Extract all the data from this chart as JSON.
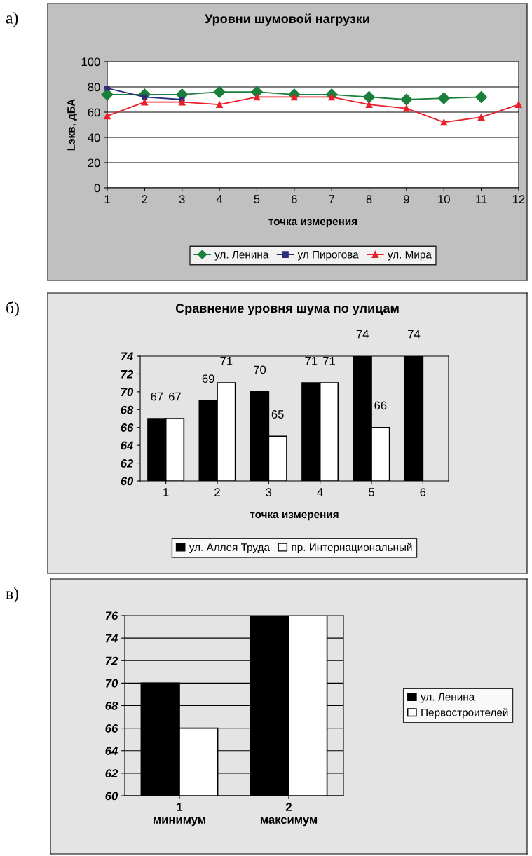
{
  "chart_data": [
    {
      "type": "line",
      "title": "Уровни шумовой нагрузки",
      "xlabel": "точка измерения",
      "ylabel": "Lэкв, дБА",
      "annotations": [
        "а)"
      ],
      "x": [
        1,
        2,
        3,
        4,
        5,
        6,
        7,
        8,
        9,
        10,
        11,
        12
      ],
      "xlim": [
        1,
        12
      ],
      "xticks": [
        1,
        2,
        3,
        4,
        5,
        6,
        7,
        8,
        9,
        10,
        11,
        12
      ],
      "ylim": [
        0,
        100
      ],
      "yticks": [
        0,
        20,
        40,
        60,
        80,
        100
      ],
      "grid": "y",
      "legend": "bottom",
      "series": [
        {
          "name": "ул. Ленина",
          "color": "#1a7f3a",
          "marker": "diamond",
          "values": [
            74,
            74,
            74,
            76,
            76,
            74,
            74,
            72,
            70,
            71,
            72,
            null
          ]
        },
        {
          "name": "ул Пирогова",
          "color": "#2b2f7a",
          "marker": "square",
          "values": [
            79,
            72,
            70,
            null,
            null,
            null,
            null,
            null,
            null,
            null,
            null,
            null
          ]
        },
        {
          "name": "ул. Мира",
          "color": "#e8202a",
          "marker": "triangle",
          "values": [
            57,
            68,
            68,
            66,
            72,
            72,
            72,
            66,
            63,
            52,
            56,
            66
          ]
        }
      ]
    },
    {
      "type": "bar",
      "title": "Сравнение уровня шума по улицам",
      "xlabel": "точка измерения",
      "annotations": [
        "б)"
      ],
      "categories": [
        "1",
        "2",
        "3",
        "4",
        "5",
        "6"
      ],
      "ylim": [
        60,
        74
      ],
      "yticks": [
        60,
        62,
        64,
        66,
        68,
        70,
        72,
        74
      ],
      "data_labels": true,
      "legend": "bottom",
      "series": [
        {
          "name": "ул. Аллея Труда",
          "color": "#000000",
          "values": [
            67,
            69,
            70,
            71,
            74,
            74
          ]
        },
        {
          "name": "пр. Интернациональный",
          "color": "#ffffff",
          "values": [
            67,
            71,
            65,
            71,
            66,
            null
          ]
        }
      ]
    },
    {
      "type": "bar",
      "annotations": [
        "в)"
      ],
      "categories": [
        "1\nминимум",
        "2\nмаксимум"
      ],
      "ylim": [
        60,
        76
      ],
      "yticks": [
        60,
        62,
        64,
        66,
        68,
        70,
        72,
        74,
        76
      ],
      "grid": "y",
      "legend": "right",
      "series": [
        {
          "name": "ул. Ленина",
          "color": "#000000",
          "values": [
            70,
            76
          ]
        },
        {
          "name": "Первостроителей",
          "color": "#ffffff",
          "values": [
            66,
            76
          ]
        }
      ]
    }
  ]
}
